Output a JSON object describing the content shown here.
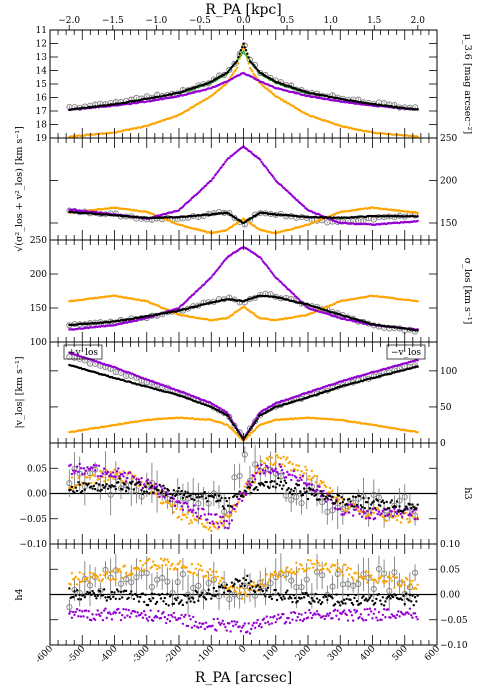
{
  "chart_data": {
    "type": "scatter",
    "top_axis": {
      "label": "R_PA [kpc]",
      "ticks": [
        -2.0,
        -1.5,
        -1.0,
        -0.5,
        0.0,
        0.5,
        1.0,
        1.5,
        2.0
      ],
      "tick_labels": [
        "−2.0",
        "−1.5",
        "−1.0",
        "−0.5",
        "0.0",
        "0.5",
        "1.0",
        "1.5",
        "2.0"
      ],
      "lim": [
        -2.22,
        2.22
      ]
    },
    "bottom_axis": {
      "label": "R_PA [arcsec]",
      "ticks": [
        -600,
        -500,
        -400,
        -300,
        -200,
        -100,
        0,
        100,
        200,
        300,
        400,
        500,
        600
      ],
      "tick_labels": [
        "-600",
        "-500",
        "-400",
        "-300",
        "-200",
        "-100",
        "0",
        "100",
        "200",
        "300",
        "400",
        "500",
        "600"
      ],
      "lim": [
        -600,
        600
      ]
    },
    "series_colors": {
      "observed": "#808080",
      "total_model": "#000000",
      "bulge_model": "#ffa500",
      "disc_model": "#9400d3",
      "third_component": "#22aa22"
    },
    "panels": [
      {
        "key": "mu",
        "ylabel": "μ_3.6 [mag arcsec⁻²]",
        "ylabel_side": "right",
        "ticks_side": "left",
        "ylim": [
          19,
          11
        ],
        "yticks": [
          11,
          12,
          13,
          14,
          15,
          16,
          17,
          18,
          19
        ],
        "series": {
          "observed": {
            "x": [
              -540,
              -400,
              -300,
              -200,
              -100,
              -50,
              -20,
              0,
              20,
              50,
              100,
              200,
              300,
              400,
              540
            ],
            "y": [
              16.8,
              16.4,
              16.0,
              15.6,
              14.8,
              14.1,
              13.2,
              11.9,
              13.2,
              14.1,
              14.8,
              15.6,
              16.0,
              16.4,
              16.8
            ]
          },
          "total_model": {
            "x": [
              -540,
              -400,
              -300,
              -200,
              -100,
              -50,
              -20,
              0,
              20,
              50,
              100,
              200,
              300,
              400,
              540
            ],
            "y": [
              16.9,
              16.5,
              16.1,
              15.65,
              14.85,
              14.15,
              13.3,
              12.0,
              13.3,
              14.15,
              14.85,
              15.65,
              16.1,
              16.5,
              16.9
            ]
          },
          "bulge_model": {
            "x": [
              -540,
              -400,
              -300,
              -200,
              -100,
              -50,
              -20,
              0,
              20,
              50,
              100,
              200,
              300,
              400,
              540
            ],
            "y": [
              18.9,
              18.6,
              18.1,
              17.3,
              15.9,
              14.9,
              13.8,
              12.1,
              13.8,
              14.9,
              15.9,
              17.3,
              18.1,
              18.6,
              18.9
            ]
          },
          "disc_model": {
            "x": [
              -540,
              -400,
              -300,
              -200,
              -100,
              -50,
              -20,
              0,
              20,
              50,
              100,
              200,
              300,
              400,
              540
            ],
            "y": [
              16.9,
              16.6,
              16.3,
              15.9,
              15.3,
              14.8,
              14.4,
              14.2,
              14.4,
              14.8,
              15.3,
              15.9,
              16.3,
              16.6,
              16.9
            ]
          },
          "third_component": {
            "x": [
              -200,
              -100,
              -50,
              0,
              50,
              100,
              200
            ],
            "y": [
              15.7,
              14.9,
              14.2,
              12.6,
              14.2,
              14.9,
              15.7
            ]
          }
        }
      },
      {
        "key": "vrms",
        "ylabel": "√(σ²_los + v²_los) [km s⁻¹]",
        "ylabel_side": "left",
        "ticks_side": "right",
        "ylim": [
          130,
          250
        ],
        "yticks": [
          150,
          200,
          250
        ],
        "series": {
          "observed": {
            "x": [
              -540,
              -400,
              -300,
              -200,
              -100,
              -50,
              0,
              50,
              100,
              200,
              300,
              400,
              540
            ],
            "y": [
              165,
              160,
              155,
              155,
              160,
              163,
              148,
              163,
              160,
              155,
              150,
              155,
              160
            ]
          },
          "total_model": {
            "x": [
              -540,
              -400,
              -300,
              -200,
              -100,
              -50,
              0,
              50,
              100,
              200,
              300,
              400,
              540
            ],
            "y": [
              163,
              159,
              156,
              157,
              160,
              162,
              150,
              162,
              160,
              157,
              156,
              158,
              158
            ]
          },
          "bulge_model": {
            "x": [
              -540,
              -400,
              -300,
              -200,
              -100,
              -50,
              0,
              50,
              100,
              200,
              300,
              400,
              540
            ],
            "y": [
              162,
              168,
              163,
              148,
              138,
              142,
              155,
              142,
              138,
              148,
              163,
              168,
              162
            ]
          },
          "disc_model": {
            "x": [
              -540,
              -400,
              -300,
              -200,
              -100,
              -50,
              0,
              50,
              100,
              200,
              300,
              400,
              540
            ],
            "y": [
              166,
              160,
              155,
              165,
              200,
              225,
              240,
              225,
              200,
              165,
              150,
              148,
              152
            ]
          }
        }
      },
      {
        "key": "sigma",
        "ylabel": "σ_los [km s⁻¹]",
        "ylabel_side": "right",
        "ticks_side": "left",
        "ylim": [
          100,
          250
        ],
        "yticks": [
          100,
          150,
          200,
          250
        ],
        "series": {
          "observed": {
            "x": [
              -540,
              -400,
              -300,
              -200,
              -100,
              -50,
              0,
              50,
              100,
              200,
              300,
              400,
              540
            ],
            "y": [
              125,
              130,
              137,
              145,
              160,
              165,
              158,
              170,
              168,
              155,
              140,
              125,
              115
            ]
          },
          "total_model": {
            "x": [
              -540,
              -400,
              -300,
              -200,
              -100,
              -50,
              0,
              50,
              100,
              200,
              300,
              400,
              540
            ],
            "y": [
              125,
              130,
              138,
              146,
              158,
              163,
              160,
              168,
              166,
              155,
              140,
              126,
              117
            ]
          },
          "bulge_model": {
            "x": [
              -540,
              -400,
              -300,
              -200,
              -100,
              -50,
              0,
              50,
              100,
              200,
              300,
              400,
              540
            ],
            "y": [
              160,
              168,
              160,
              140,
              132,
              135,
              152,
              135,
              132,
              140,
              160,
              168,
              160
            ]
          },
          "disc_model": {
            "x": [
              -540,
              -400,
              -300,
              -200,
              -100,
              -50,
              0,
              50,
              100,
              200,
              300,
              400,
              540
            ],
            "y": [
              118,
              125,
              135,
              150,
              195,
              225,
              240,
              225,
              195,
              150,
              135,
              125,
              118
            ]
          }
        }
      },
      {
        "key": "vlos",
        "ylabel": "|v_los| [km s⁻¹]",
        "ylabel_side": "left",
        "ticks_side": "right",
        "ylim": [
          0,
          140
        ],
        "yticks": [
          0,
          50,
          100
        ],
        "annotations": [
          "+v_los",
          "−v_los"
        ],
        "series": {
          "observed": {
            "x": [
              -540,
              -400,
              -300,
              -200,
              -100,
              -50,
              0,
              50,
              100,
              200,
              300,
              400,
              540
            ],
            "y": [
              120,
              100,
              85,
              70,
              52,
              40,
              5,
              40,
              52,
              65,
              80,
              92,
              110
            ]
          },
          "total_model": {
            "x": [
              -540,
              -400,
              -300,
              -200,
              -100,
              -50,
              0,
              50,
              100,
              200,
              300,
              400,
              540
            ],
            "y": [
              108,
              90,
              78,
              66,
              50,
              38,
              5,
              38,
              50,
              63,
              78,
              90,
              106
            ]
          },
          "bulge_model": {
            "x": [
              -540,
              -400,
              -300,
              -200,
              -100,
              -50,
              0,
              50,
              100,
              200,
              300,
              400,
              540
            ],
            "y": [
              15,
              25,
              32,
              35,
              32,
              25,
              3,
              25,
              32,
              35,
              32,
              25,
              15
            ]
          },
          "disc_model": {
            "x": [
              -540,
              -400,
              -300,
              -200,
              -100,
              -50,
              0,
              50,
              100,
              200,
              300,
              400,
              540
            ],
            "y": [
              125,
              105,
              88,
              72,
              55,
              42,
              5,
              42,
              55,
              70,
              85,
              98,
              115
            ]
          }
        }
      },
      {
        "key": "h3",
        "ylabel": "h3",
        "ylabel_side": "right",
        "ticks_side": "left",
        "ylim": [
          -0.1,
          0.1
        ],
        "yticks": [
          -0.1,
          -0.05,
          0.0,
          0.05
        ],
        "tick_labels": [
          "−0.10",
          "−0.05",
          "0.00",
          "0.05"
        ],
        "series": {
          "observed": {
            "x": [
              -540,
              -400,
              -300,
              -200,
              -100,
              -50,
              0,
              50,
              100,
              200,
              300,
              400,
              540
            ],
            "y": [
              0.03,
              0.02,
              0.0,
              -0.01,
              -0.02,
              -0.03,
              0.06,
              0.03,
              0.02,
              0.0,
              -0.02,
              -0.02,
              -0.03
            ]
          },
          "total_model": {
            "x": [
              -540,
              -400,
              -300,
              -200,
              -100,
              -50,
              0,
              50,
              100,
              200,
              300,
              400,
              540
            ],
            "y": [
              0.01,
              0.02,
              0.01,
              0.0,
              -0.01,
              -0.02,
              0.0,
              0.02,
              0.02,
              0.0,
              -0.01,
              -0.02,
              -0.03
            ]
          },
          "bulge_model": {
            "x": [
              -540,
              -400,
              -300,
              -200,
              -100,
              -50,
              0,
              50,
              100,
              200,
              300,
              400,
              540
            ],
            "y": [
              0.02,
              0.04,
              0.02,
              -0.04,
              -0.07,
              -0.05,
              0.0,
              0.05,
              0.07,
              0.04,
              -0.02,
              -0.04,
              -0.05
            ]
          },
          "disc_model": {
            "x": [
              -540,
              -400,
              -300,
              -200,
              -100,
              -50,
              0,
              50,
              100,
              200,
              300,
              400,
              540
            ],
            "y": [
              0.05,
              0.04,
              0.02,
              -0.02,
              -0.05,
              -0.06,
              0.0,
              0.05,
              0.05,
              0.02,
              -0.03,
              -0.04,
              -0.04
            ]
          }
        }
      },
      {
        "key": "h4",
        "ylabel": "h4",
        "ylabel_side": "left",
        "ticks_side": "right",
        "ylim": [
          -0.1,
          0.1
        ],
        "yticks": [
          -0.1,
          -0.05,
          0.0,
          0.05,
          0.1
        ],
        "tick_labels": [
          "−0.10",
          "−0.05",
          "0.00",
          "0.05",
          "0.10"
        ],
        "series": {
          "observed": {
            "x": [
              -540,
              -400,
              -300,
              -200,
              -100,
              -50,
              0,
              50,
              100,
              200,
              300,
              400,
              540
            ],
            "y": [
              0.0,
              0.04,
              0.03,
              0.02,
              0.01,
              0.01,
              0.0,
              0.01,
              0.02,
              0.02,
              0.02,
              0.03,
              0.02
            ]
          },
          "total_model": {
            "x": [
              -540,
              -400,
              -300,
              -200,
              -100,
              -50,
              0,
              50,
              100,
              200,
              300,
              400,
              540
            ],
            "y": [
              0.0,
              0.0,
              -0.01,
              -0.01,
              0.0,
              0.01,
              0.03,
              0.01,
              0.0,
              -0.01,
              -0.01,
              -0.01,
              -0.01
            ]
          },
          "bulge_model": {
            "x": [
              -540,
              -400,
              -300,
              -200,
              -100,
              -50,
              0,
              50,
              100,
              200,
              300,
              400,
              540
            ],
            "y": [
              0.03,
              0.04,
              0.06,
              0.06,
              0.04,
              0.02,
              0.0,
              0.02,
              0.04,
              0.06,
              0.05,
              0.03,
              0.02
            ]
          },
          "disc_model": {
            "x": [
              -540,
              -400,
              -300,
              -200,
              -100,
              -50,
              0,
              50,
              100,
              200,
              300,
              400,
              540
            ],
            "y": [
              -0.04,
              -0.04,
              -0.04,
              -0.05,
              -0.06,
              -0.06,
              -0.07,
              -0.06,
              -0.05,
              -0.04,
              -0.04,
              -0.04,
              -0.04
            ]
          }
        }
      }
    ],
    "grid": false,
    "legend": "none"
  }
}
